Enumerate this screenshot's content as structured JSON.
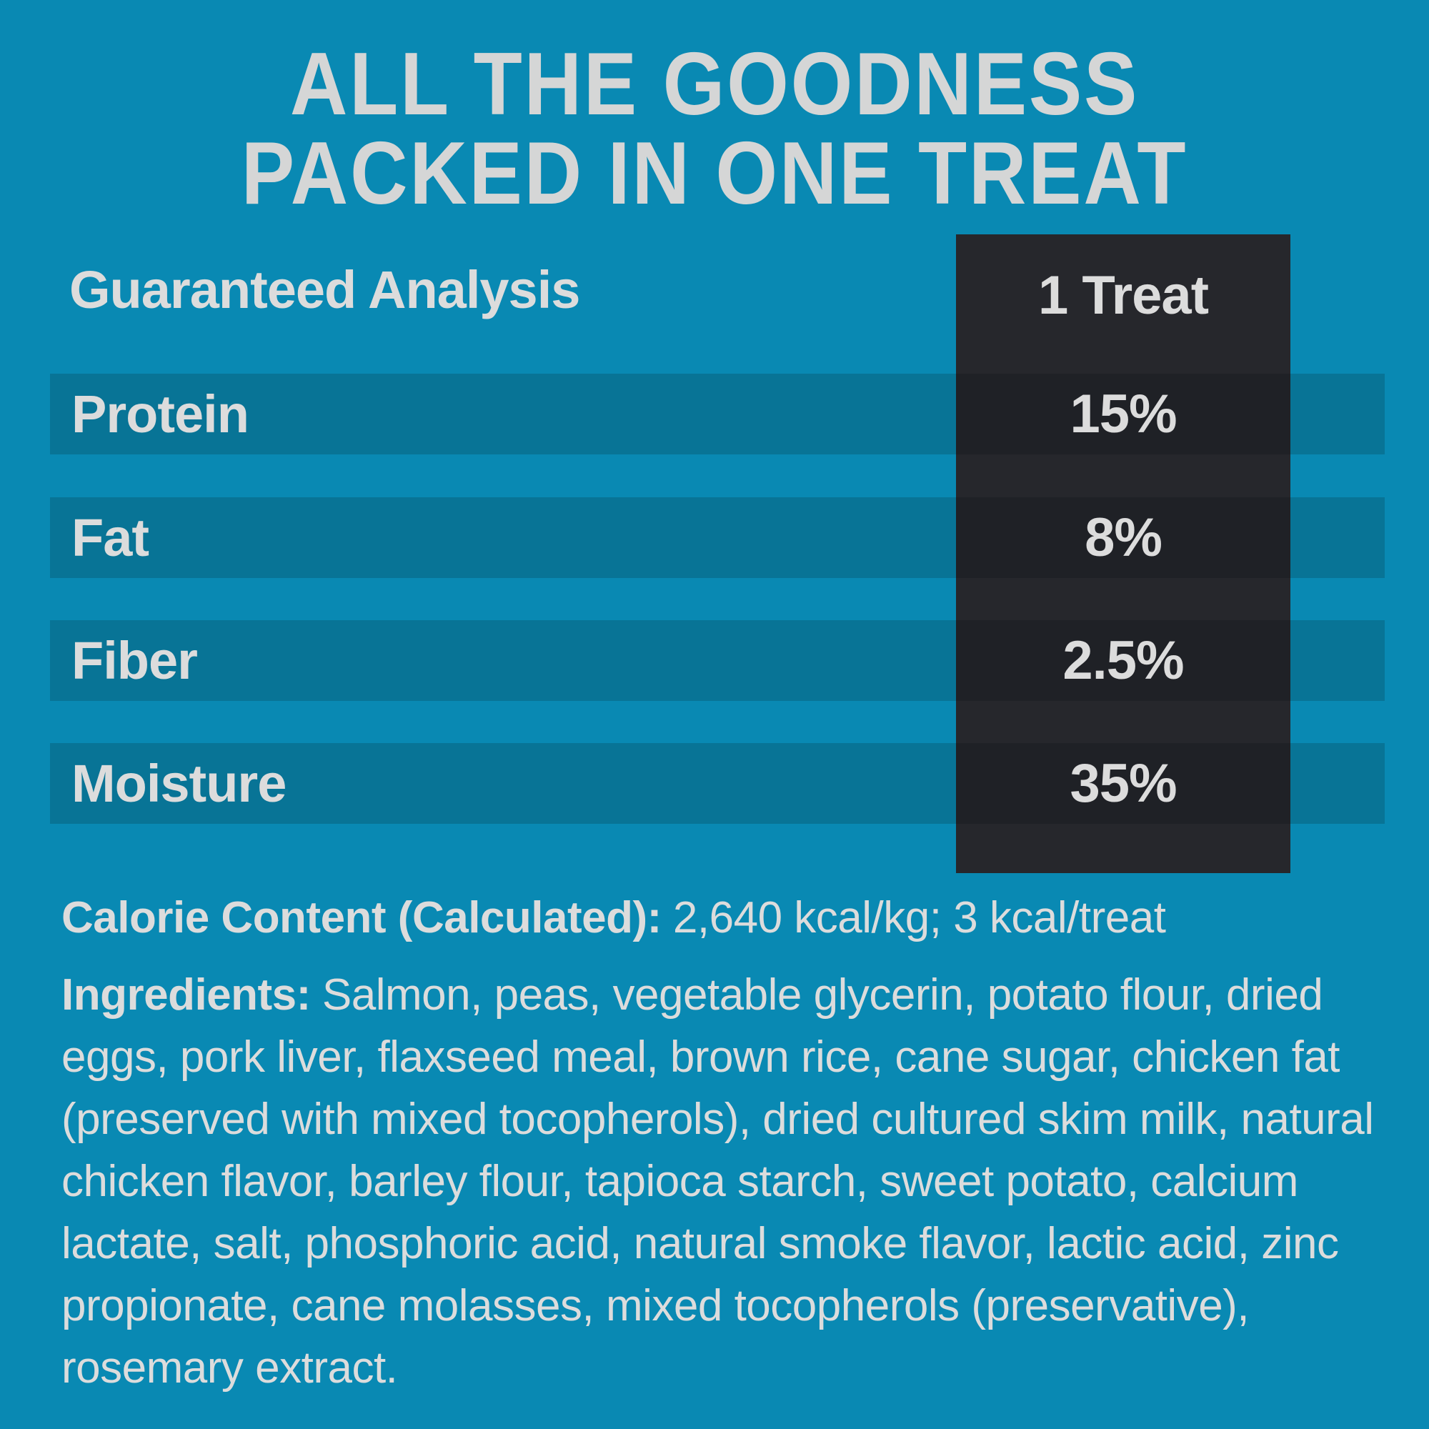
{
  "title": {
    "line1": "ALL THE GOODNESS",
    "line2": "PACKED IN ONE TREAT"
  },
  "table": {
    "header_label": "Guaranteed Analysis",
    "column_header": "1 Treat",
    "rows": [
      {
        "label": "Protein",
        "value": "15%"
      },
      {
        "label": "Fat",
        "value": "8%"
      },
      {
        "label": "Fiber",
        "value": "2.5%"
      },
      {
        "label": "Moisture",
        "value": "35%"
      }
    ]
  },
  "calorie": {
    "label": "Calorie Content (Calculated):",
    "value": "2,640 kcal/kg; 3 kcal/treat"
  },
  "ingredients": {
    "label": "Ingredients:",
    "text": "Salmon, peas, vegetable glycerin, potato flour, dried eggs, pork liver, flaxseed meal, brown rice, cane sugar, chicken fat (preserved with mixed tocopherols), dried cultured skim milk, natural chicken flavor, barley flour, tapioca starch, sweet potato, calcium lactate, salt, phosphoric acid, natural smoke flavor, lactic acid, zinc propionate, cane molasses, mixed tocopherols (preservative), rosemary extract."
  },
  "colors": {
    "bg": "#0989B3",
    "band": "#087496",
    "panel": "#26272C",
    "panel_stripe": "#1F2126",
    "text": "#DCDCDC",
    "title": "#D5D6D6"
  }
}
